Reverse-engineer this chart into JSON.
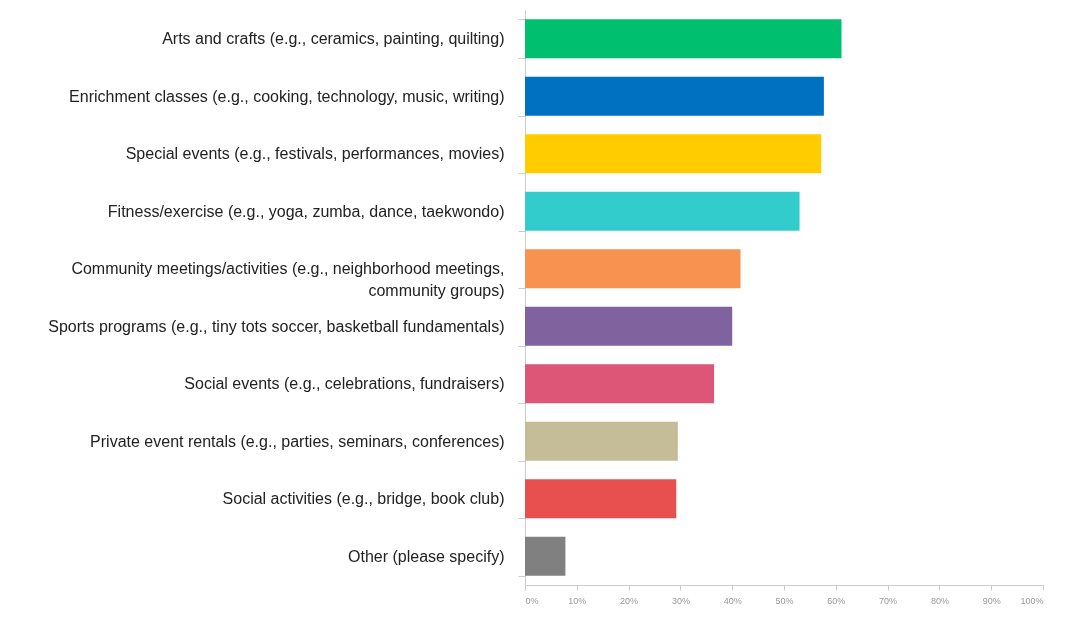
{
  "chart_data": {
    "type": "bar",
    "orientation": "horizontal",
    "categories": [
      "Arts and crafts (e.g., ceramics, painting, quilting)",
      "Enrichment classes (e.g., cooking, technology, music, writing)",
      "Special events (e.g., festivals, performances, movies)",
      "Fitness/exercise (e.g., yoga, zumba, dance, taekwondo)",
      "Community meetings/activities (e.g., neighborhood meetings, community groups)",
      "Sports programs (e.g., tiny tots soccer, basketball fundamentals)",
      "Social events (e.g., celebrations, fundraisers)",
      "Private event rentals (e.g., parties, seminars, conferences)",
      "Social activities (e.g., bridge, book club)",
      "Other (please specify)"
    ],
    "values": [
      61.1,
      57.7,
      57.2,
      53.0,
      41.6,
      40.0,
      36.5,
      29.5,
      29.2,
      7.8
    ],
    "colors": [
      "#00bf6f",
      "#0070c0",
      "#ffcc00",
      "#33cccc",
      "#f79250",
      "#7f629e",
      "#dd5677",
      "#c5bd97",
      "#e85050",
      "#808080"
    ],
    "xlim": [
      0,
      100
    ],
    "xticks": [
      {
        "value": 0,
        "label": "0%"
      },
      {
        "value": 10,
        "label": "10%"
      },
      {
        "value": 20,
        "label": "20%"
      },
      {
        "value": 30,
        "label": "30%"
      },
      {
        "value": 40,
        "label": "40%"
      },
      {
        "value": 50,
        "label": "50%"
      },
      {
        "value": 60,
        "label": "60%"
      },
      {
        "value": 70,
        "label": "70%"
      },
      {
        "value": 80,
        "label": "80%"
      },
      {
        "value": 90,
        "label": "90%"
      },
      {
        "value": 100,
        "label": "100%"
      }
    ],
    "grid": false
  }
}
